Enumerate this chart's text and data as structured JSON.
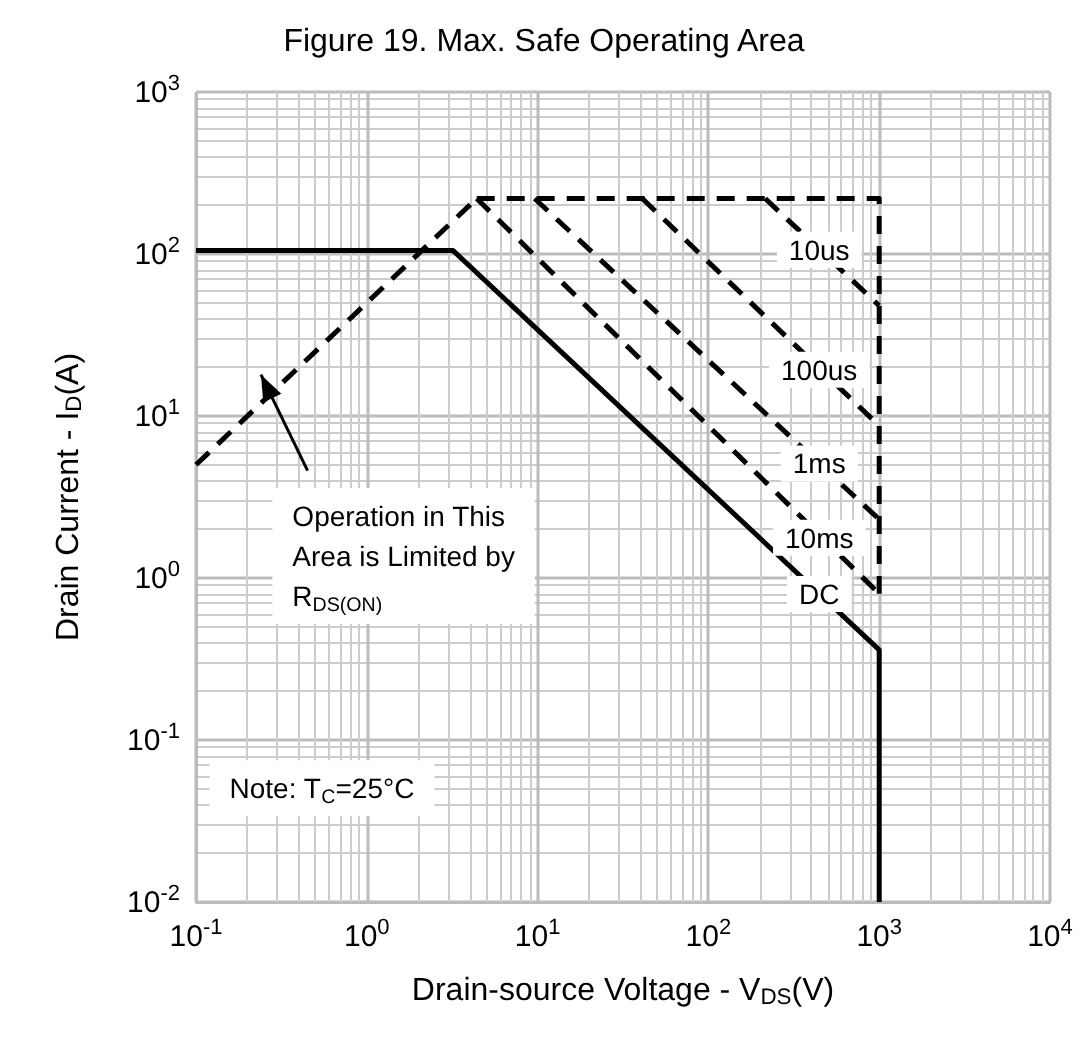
{
  "chart_data": {
    "type": "line",
    "title": "Figure 19. Max. Safe Operating Area",
    "xlabel": "Drain-source Voltage - V$_{DS}$(V)",
    "ylabel": "Drain Current - I$_{D}$(A)",
    "log": "xy",
    "grid": true,
    "legend": false,
    "marker": "none",
    "xlim": [
      0.1,
      10000
    ],
    "ylim": [
      0.01,
      1000
    ],
    "xticks": [
      {
        "value": 0.1,
        "label": "10$^{-1}$"
      },
      {
        "value": 1,
        "label": "10$^{0}$"
      },
      {
        "value": 10,
        "label": "10$^{1}$"
      },
      {
        "value": 100,
        "label": "10$^{2}$"
      },
      {
        "value": 1000,
        "label": "10$^{3}$"
      },
      {
        "value": 10000,
        "label": "10$^{4}$"
      }
    ],
    "yticks": [
      {
        "value": 0.01,
        "label": "10$^{-2}$"
      },
      {
        "value": 0.1,
        "label": "10$^{-1}$"
      },
      {
        "value": 1,
        "label": "10$^{0}$"
      },
      {
        "value": 10,
        "label": "10$^{1}$"
      },
      {
        "value": 100,
        "label": "10$^{2}$"
      },
      {
        "value": 1000,
        "label": "10$^{3}$"
      }
    ],
    "series": [
      {
        "name": "DC",
        "color": "#000000",
        "line_style": "solid",
        "x": [
          0.1,
          3.2,
          1000,
          1000
        ],
        "values": [
          105,
          105,
          0.36,
          0.01
        ]
      },
      {
        "color": "#000000",
        "line_style": "dashed",
        "x": [
          0.1,
          4.4
        ],
        "values": [
          5,
          220
        ]
      },
      {
        "color": "#000000",
        "line_style": "dashed",
        "x": [
          4.4,
          1000,
          1000
        ],
        "values": [
          220,
          220,
          0.8
        ]
      },
      {
        "name": "10us",
        "color": "#000000",
        "line_style": "dashed",
        "x": [
          215,
          1000
        ],
        "values": [
          220,
          48
        ]
      },
      {
        "name": "100us",
        "color": "#000000",
        "line_style": "dashed",
        "x": [
          41,
          1000
        ],
        "values": [
          220,
          8.7
        ]
      },
      {
        "name": "1ms",
        "color": "#000000",
        "line_style": "dashed",
        "x": [
          9.6,
          1000
        ],
        "values": [
          220,
          2.3
        ]
      },
      {
        "name": "10ms",
        "color": "#000000",
        "line_style": "dashed",
        "x": [
          4.4,
          1000
        ],
        "values": [
          220,
          0.8
        ]
      }
    ],
    "annotations": [
      "Operation in This Area is Limited by R$_{DS(ON)}$",
      "Note: T$_{C}$=25°C"
    ]
  }
}
